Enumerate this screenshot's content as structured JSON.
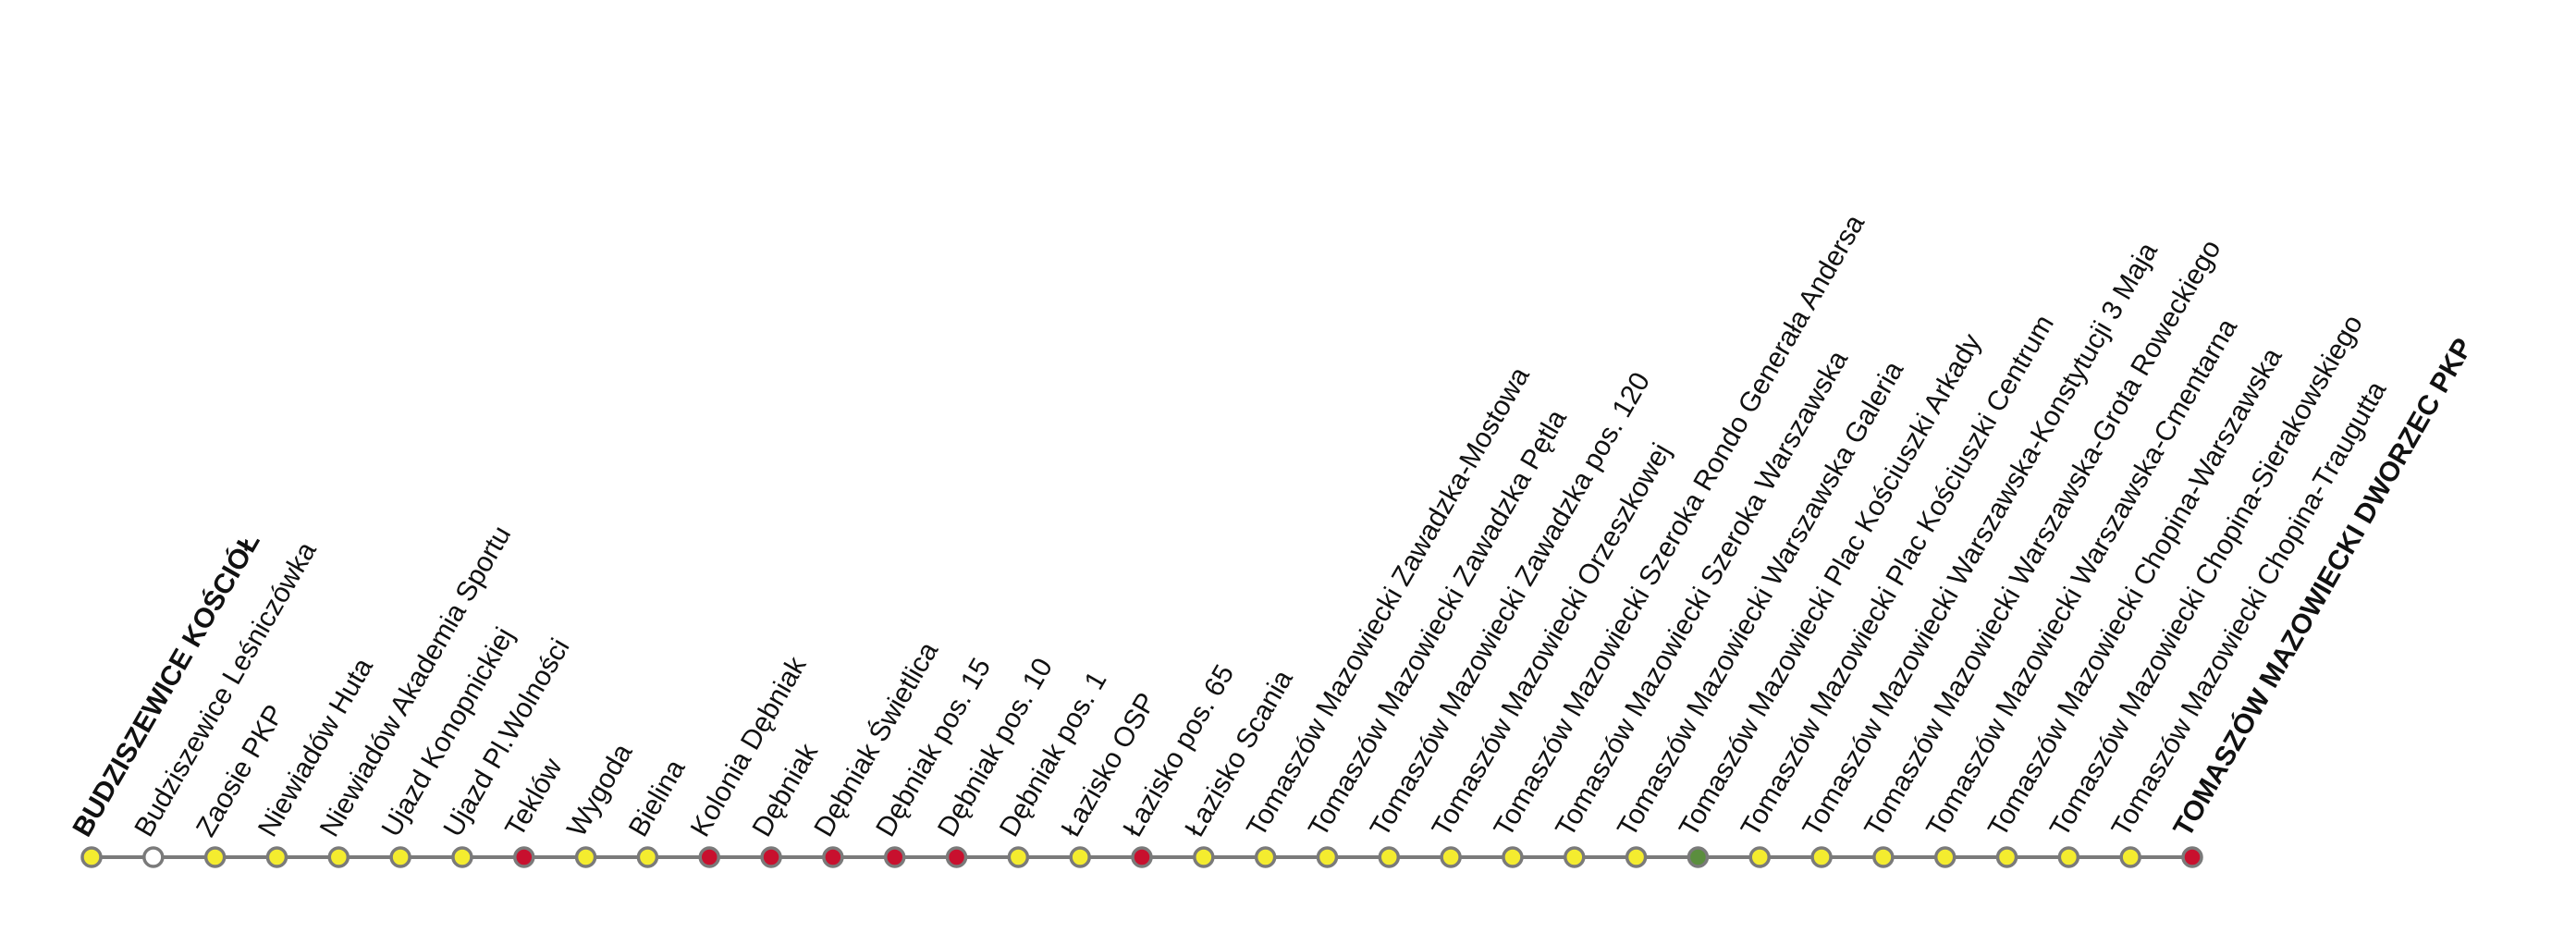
{
  "stops": [
    {
      "name": "BUDZISZEWICE KOŚCIÓŁ",
      "color": "#f4ec2f",
      "bold": true
    },
    {
      "name": "Budziszewice Leśniczówka",
      "color": "#ffffff",
      "bold": false
    },
    {
      "name": "Zaosie PKP",
      "color": "#f4ec2f",
      "bold": false
    },
    {
      "name": "Niewiadów Huta",
      "color": "#f4ec2f",
      "bold": false
    },
    {
      "name": "Niewiadów Akademia Sportu",
      "color": "#f4ec2f",
      "bold": false
    },
    {
      "name": "Ujazd Konopnickiej",
      "color": "#f4ec2f",
      "bold": false
    },
    {
      "name": "Ujazd Pl.Wolności",
      "color": "#f4ec2f",
      "bold": false
    },
    {
      "name": "Teklów",
      "color": "#c8102e",
      "bold": false
    },
    {
      "name": "Wygoda",
      "color": "#f4ec2f",
      "bold": false
    },
    {
      "name": "Bielina",
      "color": "#f4ec2f",
      "bold": false
    },
    {
      "name": "Kolonia Dębniak",
      "color": "#c8102e",
      "bold": false
    },
    {
      "name": "Dębniak",
      "color": "#c8102e",
      "bold": false
    },
    {
      "name": "Dębniak Świetlica",
      "color": "#c8102e",
      "bold": false
    },
    {
      "name": "Dębniak pos. 15",
      "color": "#c8102e",
      "bold": false
    },
    {
      "name": "Dębniak pos. 10",
      "color": "#c8102e",
      "bold": false
    },
    {
      "name": "Dębniak pos. 1",
      "color": "#f4ec2f",
      "bold": false
    },
    {
      "name": "Łazisko OSP",
      "color": "#f4ec2f",
      "bold": false
    },
    {
      "name": "Łazisko pos. 65",
      "color": "#c8102e",
      "bold": false
    },
    {
      "name": "Łazisko Scania",
      "color": "#f4ec2f",
      "bold": false
    },
    {
      "name": "Tomaszów Mazowiecki Zawadzka-Mostowa",
      "color": "#f4ec2f",
      "bold": false
    },
    {
      "name": "Tomaszów Mazowiecki Zawadzka Pętla",
      "color": "#f4ec2f",
      "bold": false
    },
    {
      "name": "Tomaszów Mazowiecki Zawadzka pos. 120",
      "color": "#f4ec2f",
      "bold": false
    },
    {
      "name": "Tomaszów Mazowiecki Orzeszkowej",
      "color": "#f4ec2f",
      "bold": false
    },
    {
      "name": "Tomaszów Mazowiecki Szeroka Rondo Generała Andersa",
      "color": "#f4ec2f",
      "bold": false
    },
    {
      "name": "Tomaszów Mazowiecki Szeroka Warszawska",
      "color": "#f4ec2f",
      "bold": false
    },
    {
      "name": "Tomaszów Mazowiecki Warszawska Galeria",
      "color": "#f4ec2f",
      "bold": false
    },
    {
      "name": "Tomaszów Mazowiecki Plac Kościuszki Arkady",
      "color": "#5b8e3e",
      "bold": false
    },
    {
      "name": "Tomaszów Mazowiecki Plac Kościuszki Centrum",
      "color": "#f4ec2f",
      "bold": false
    },
    {
      "name": "Tomaszów Mazowiecki Warszawska-Konstytucji 3 Maja",
      "color": "#f4ec2f",
      "bold": false
    },
    {
      "name": "Tomaszów Mazowiecki Warszawska-Grota Roweckiego",
      "color": "#f4ec2f",
      "bold": false
    },
    {
      "name": "Tomaszów Mazowiecki Warszawska-Cmentarna",
      "color": "#f4ec2f",
      "bold": false
    },
    {
      "name": "Tomaszów Mazowiecki Chopina-Warszawska",
      "color": "#f4ec2f",
      "bold": false
    },
    {
      "name": "Tomaszów Mazowiecki Chopina-Sierakowskiego",
      "color": "#f4ec2f",
      "bold": false
    },
    {
      "name": "Tomaszów Mazowiecki Chopina-Traugutta",
      "color": "#f4ec2f",
      "bold": false
    },
    {
      "name": "TOMASZÓW MAZOWIECKI DWORZEC PKP",
      "color": "#c8102e",
      "bold": true
    }
  ]
}
